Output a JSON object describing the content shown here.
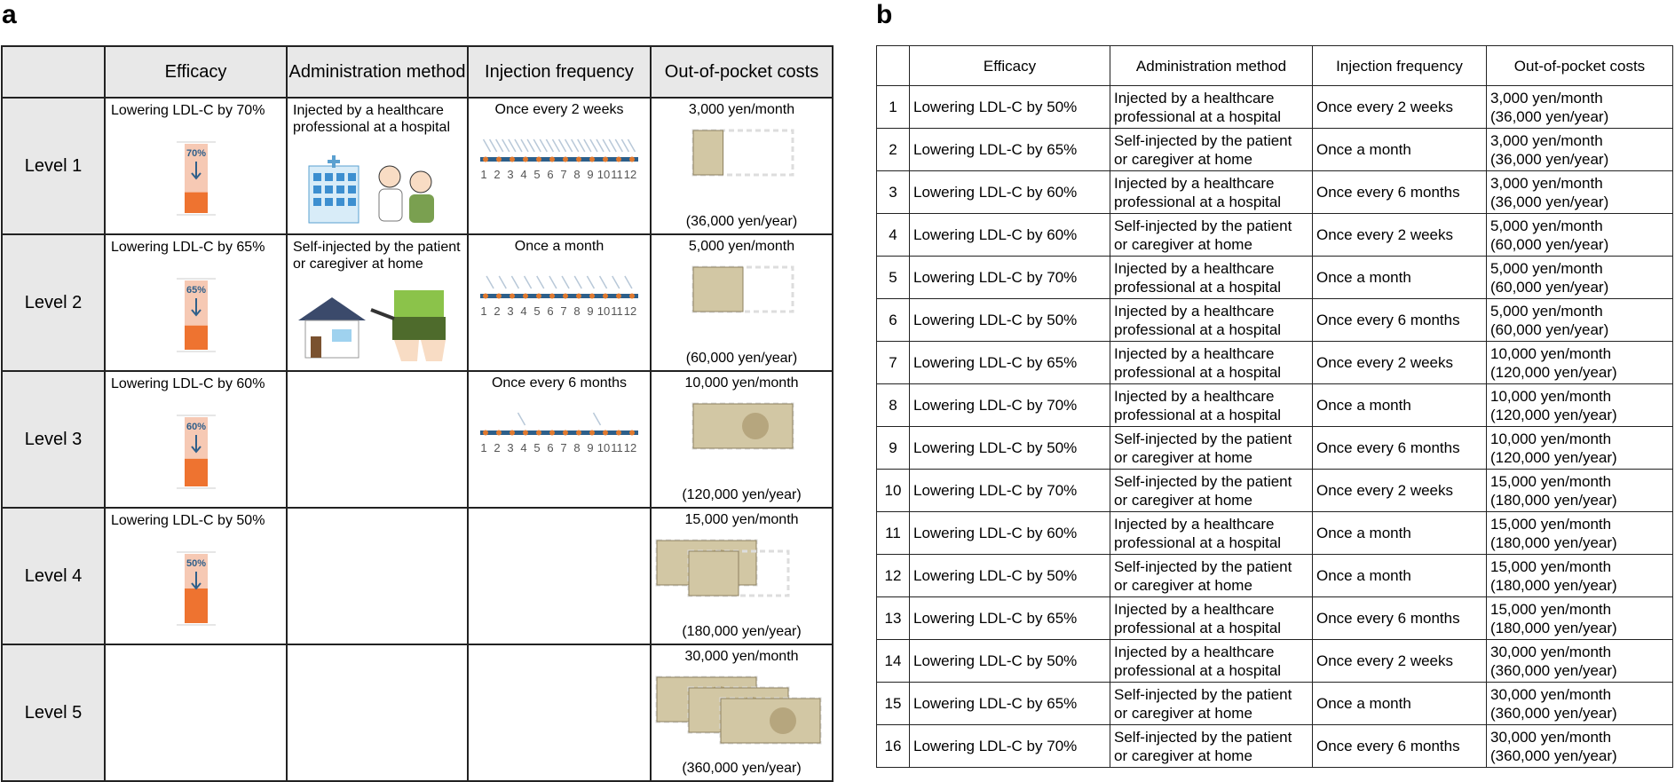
{
  "panel_a": {
    "label": "a",
    "headers": [
      "Efficacy",
      "Administration method",
      "Injection frequency",
      "Out-of-pocket costs"
    ],
    "months": [
      1,
      2,
      3,
      4,
      5,
      6,
      7,
      8,
      9,
      10,
      11,
      12
    ],
    "rows": [
      {
        "level": "Level 1",
        "efficacy": "Lowering LDL-C by 70%",
        "efficacy_icon": "70%",
        "administration": "Injected by a healthcare professional at a hospital",
        "frequency": "Once every 2 weeks",
        "cost_month": "3,000 yen/month",
        "cost_year": "(36,000 yen/year)"
      },
      {
        "level": "Level 2",
        "efficacy": "Lowering LDL-C by 65%",
        "efficacy_icon": "65%",
        "administration": "Self-injected by the patient or caregiver at home",
        "frequency": "Once a month",
        "cost_month": "5,000 yen/month",
        "cost_year": "(60,000 yen/year)"
      },
      {
        "level": "Level 3",
        "efficacy": "Lowering LDL-C by 60%",
        "efficacy_icon": "60%",
        "administration": null,
        "frequency": "Once every 6 months",
        "cost_month": "10,000 yen/month",
        "cost_year": "(120,000 yen/year)"
      },
      {
        "level": "Level 4",
        "efficacy": "Lowering LDL-C by 50%",
        "efficacy_icon": "50%",
        "administration": null,
        "frequency": null,
        "cost_month": "15,000 yen/month",
        "cost_year": "(180,000 yen/year)"
      },
      {
        "level": "Level 5",
        "efficacy": null,
        "efficacy_icon": null,
        "administration": null,
        "frequency": null,
        "cost_month": "30,000 yen/month",
        "cost_year": "(360,000 yen/year)"
      }
    ]
  },
  "panel_b": {
    "label": "b",
    "headers": [
      "Efficacy",
      "Administration method",
      "Injection frequency",
      "Out-of-pocket costs"
    ],
    "rows": [
      [
        1,
        "Lowering LDL-C by 50%",
        "Injected by a healthcare professional at a hospital",
        "Once every 2 weeks",
        "3,000 yen/month",
        "(36,000 yen/year)"
      ],
      [
        2,
        "Lowering LDL-C by 65%",
        "Self-injected by the patient or caregiver at home",
        "Once a month",
        "3,000 yen/month",
        "(36,000 yen/year)"
      ],
      [
        3,
        "Lowering LDL-C by 60%",
        "Injected by a healthcare professional at a hospital",
        "Once every 6 months",
        "3,000 yen/month",
        "(36,000 yen/year)"
      ],
      [
        4,
        "Lowering LDL-C by 60%",
        "Self-injected by the patient or caregiver at home",
        "Once every 2 weeks",
        "5,000 yen/month",
        "(60,000 yen/year)"
      ],
      [
        5,
        "Lowering LDL-C by 70%",
        "Injected by a healthcare professional at a hospital",
        "Once a month",
        "5,000 yen/month",
        "(60,000 yen/year)"
      ],
      [
        6,
        "Lowering LDL-C by 50%",
        "Injected by a healthcare professional at a hospital",
        "Once every 6 months",
        "5,000 yen/month",
        "(60,000 yen/year)"
      ],
      [
        7,
        "Lowering LDL-C by 65%",
        "Injected by a healthcare professional at a hospital",
        "Once every 2 weeks",
        "10,000 yen/month",
        "(120,000 yen/year)"
      ],
      [
        8,
        "Lowering LDL-C by 70%",
        "Injected by a healthcare professional at a hospital",
        "Once a month",
        "10,000 yen/month",
        "(120,000 yen/year)"
      ],
      [
        9,
        "Lowering LDL-C by 50%",
        "Self-injected by the patient or caregiver at home",
        "Once every 6 months",
        "10,000 yen/month",
        "(120,000 yen/year)"
      ],
      [
        10,
        "Lowering LDL-C by 70%",
        "Self-injected by the patient or caregiver at home",
        "Once every 2 weeks",
        "15,000 yen/month",
        "(180,000 yen/year)"
      ],
      [
        11,
        "Lowering LDL-C by 60%",
        "Injected by a healthcare professional at a hospital",
        "Once a month",
        "15,000 yen/month",
        "(180,000 yen/year)"
      ],
      [
        12,
        "Lowering LDL-C by 50%",
        "Self-injected by the patient or caregiver at home",
        "Once a month",
        "15,000 yen/month",
        "(180,000 yen/year)"
      ],
      [
        13,
        "Lowering LDL-C by 65%",
        "Injected by a healthcare professional at a hospital",
        "Once every 6 months",
        "15,000 yen/month",
        "(180,000 yen/year)"
      ],
      [
        14,
        "Lowering LDL-C by 50%",
        "Injected by a healthcare professional at a hospital",
        "Once every 2 weeks",
        "30,000 yen/month",
        "(360,000 yen/year)"
      ],
      [
        15,
        "Lowering LDL-C by 65%",
        "Self-injected by the patient or caregiver at home",
        "Once a month",
        "30,000 yen/month",
        "(360,000 yen/year)"
      ],
      [
        16,
        "Lowering LDL-C by 70%",
        "Self-injected by the patient or caregiver at home",
        "Once every 6 months",
        "30,000 yen/month",
        "(360,000 yen/year)"
      ]
    ]
  }
}
